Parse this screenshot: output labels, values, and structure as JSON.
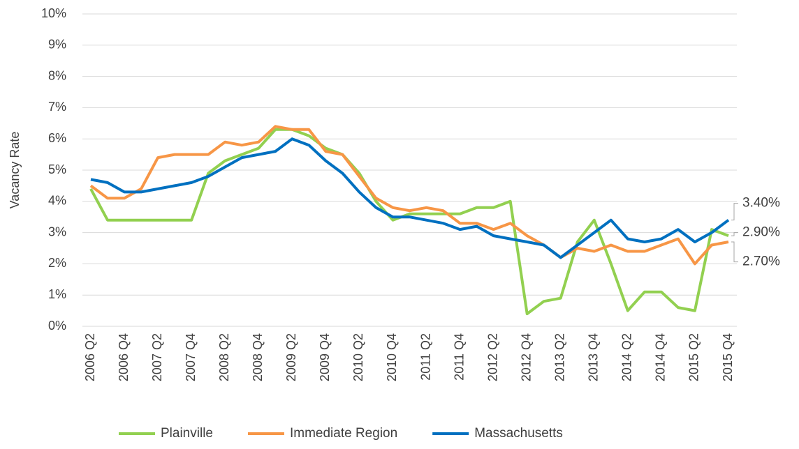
{
  "chart_data": {
    "type": "line",
    "y_label": "Vacancy Rate",
    "categories": [
      "2006 Q2",
      null,
      "2006 Q4",
      null,
      "2007 Q2",
      null,
      "2007 Q4",
      null,
      "2008 Q2",
      null,
      "2008 Q4",
      null,
      "2009 Q2",
      null,
      "2009 Q4",
      null,
      "2010 Q2",
      null,
      "2010 Q4",
      null,
      "2011 Q2",
      null,
      "2011 Q4",
      null,
      "2012 Q2",
      null,
      "2012 Q4",
      null,
      "2013 Q2",
      null,
      "2013 Q4",
      null,
      "2014 Q2",
      null,
      "2014 Q4",
      null,
      "2015 Q2",
      null,
      "2015 Q4"
    ],
    "series": [
      {
        "name": "Plainville",
        "color": "#92d050",
        "values": [
          4.4,
          3.4,
          3.4,
          3.4,
          3.4,
          3.4,
          3.4,
          4.9,
          5.3,
          5.5,
          5.7,
          6.3,
          6.3,
          6.1,
          5.7,
          5.5,
          4.9,
          4.0,
          3.4,
          3.6,
          3.6,
          3.6,
          3.6,
          3.8,
          3.8,
          4.0,
          0.4,
          0.8,
          0.9,
          2.7,
          3.4,
          2.0,
          0.5,
          1.1,
          1.1,
          0.6,
          0.5,
          3.1,
          2.9
        ],
        "value_labels": [
          null,
          null,
          null,
          null,
          null,
          null,
          null,
          null,
          null,
          null,
          null,
          null,
          null,
          null,
          null,
          null,
          null,
          null,
          null,
          null,
          null,
          null,
          null,
          null,
          null,
          null,
          null,
          null,
          null,
          null,
          null,
          null,
          null,
          null,
          null,
          null,
          null,
          null,
          "2.90%"
        ]
      },
      {
        "name": "Immediate Region",
        "color": "#f79646",
        "values": [
          4.5,
          4.1,
          4.1,
          4.4,
          5.4,
          5.5,
          5.5,
          5.5,
          5.9,
          5.8,
          5.9,
          6.4,
          6.3,
          6.3,
          5.6,
          5.5,
          4.8,
          4.1,
          3.8,
          3.7,
          3.8,
          3.7,
          3.3,
          3.3,
          3.1,
          3.3,
          2.9,
          2.6,
          2.2,
          2.5,
          2.4,
          2.6,
          2.4,
          2.4,
          2.6,
          2.8,
          2.0,
          2.6,
          2.7
        ],
        "value_labels": [
          null,
          null,
          null,
          null,
          null,
          null,
          null,
          null,
          null,
          null,
          null,
          null,
          null,
          null,
          null,
          null,
          null,
          null,
          null,
          null,
          null,
          null,
          null,
          null,
          null,
          null,
          null,
          null,
          null,
          null,
          null,
          null,
          null,
          null,
          null,
          null,
          null,
          null,
          "2.70%"
        ]
      },
      {
        "name": "Massachusetts",
        "color": "#0070c0",
        "values": [
          4.7,
          4.6,
          4.3,
          4.3,
          4.4,
          4.5,
          4.6,
          4.8,
          5.1,
          5.4,
          5.5,
          5.6,
          6.0,
          5.8,
          5.3,
          4.9,
          4.3,
          3.8,
          3.5,
          3.5,
          3.4,
          3.3,
          3.1,
          3.2,
          2.9,
          2.8,
          2.7,
          2.6,
          2.2,
          2.6,
          3.0,
          3.4,
          2.8,
          2.7,
          2.8,
          3.1,
          2.7,
          3.0,
          3.4
        ],
        "value_labels": [
          null,
          null,
          null,
          null,
          null,
          null,
          null,
          null,
          null,
          null,
          null,
          null,
          null,
          null,
          null,
          null,
          null,
          null,
          null,
          null,
          null,
          null,
          null,
          null,
          null,
          null,
          null,
          null,
          null,
          null,
          null,
          null,
          null,
          null,
          null,
          null,
          null,
          null,
          "3.40%"
        ]
      }
    ],
    "ylim": [
      0,
      10
    ],
    "yticks": [
      {
        "value": 0,
        "label": "0%"
      },
      {
        "value": 1,
        "label": "1%"
      },
      {
        "value": 2,
        "label": "2%"
      },
      {
        "value": 3,
        "label": "3%"
      },
      {
        "value": 4,
        "label": "4%"
      },
      {
        "value": 5,
        "label": "5%"
      },
      {
        "value": 6,
        "label": "6%"
      },
      {
        "value": 7,
        "label": "7%"
      },
      {
        "value": 8,
        "label": "8%"
      },
      {
        "value": 9,
        "label": "9%"
      },
      {
        "value": 10,
        "label": "10%"
      }
    ],
    "grid": true,
    "legend": "bottom"
  }
}
